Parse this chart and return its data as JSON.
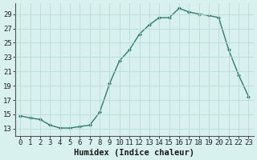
{
  "x": [
    0,
    1,
    2,
    3,
    4,
    5,
    6,
    7,
    8,
    9,
    10,
    11,
    12,
    13,
    14,
    15,
    16,
    17,
    18,
    19,
    20,
    21,
    22,
    23
  ],
  "y": [
    14.8,
    14.5,
    14.3,
    13.5,
    13.1,
    13.1,
    13.3,
    13.5,
    15.3,
    19.3,
    22.5,
    24.0,
    26.2,
    27.5,
    28.5,
    28.5,
    29.8,
    29.3,
    29.0,
    28.8,
    28.5,
    24.0,
    20.5,
    17.5
  ],
  "line_color": "#2e7d6e",
  "marker": "D",
  "marker_size": 2.0,
  "bg_color": "#d8f0ee",
  "grid_color": "#b8dbd8",
  "xlabel": "Humidex (Indice chaleur)",
  "xlim": [
    -0.5,
    23.5
  ],
  "ylim": [
    12.0,
    30.5
  ],
  "yticks": [
    13,
    15,
    17,
    19,
    21,
    23,
    25,
    27,
    29
  ],
  "xticks": [
    0,
    1,
    2,
    3,
    4,
    5,
    6,
    7,
    8,
    9,
    10,
    11,
    12,
    13,
    14,
    15,
    16,
    17,
    18,
    19,
    20,
    21,
    22,
    23
  ],
  "tick_label_fontsize": 6.5,
  "xlabel_fontsize": 7.5,
  "line_width": 1.0
}
